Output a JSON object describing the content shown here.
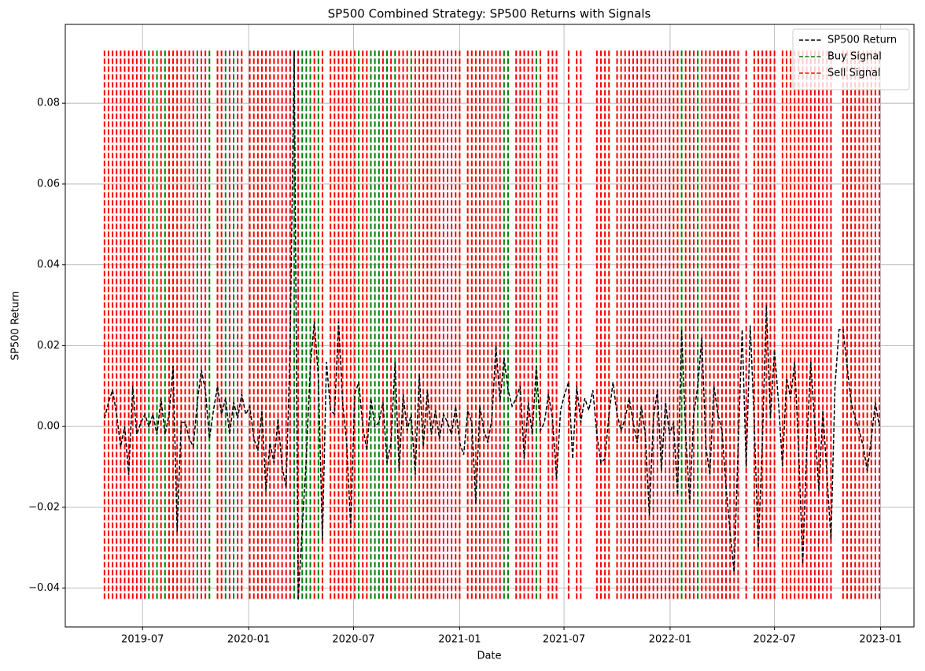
{
  "chart_data": {
    "type": "line",
    "title": "SP500 Combined Strategy: SP500 Returns with Signals",
    "x_label": "Date",
    "y_label": "SP500 Return",
    "x": [
      "2019-04-26",
      "2019-05-03",
      "2019-05-10",
      "2019-05-17",
      "2019-05-24",
      "2019-05-31",
      "2019-06-07",
      "2019-06-14",
      "2019-06-21",
      "2019-06-28",
      "2019-07-05",
      "2019-07-12",
      "2019-07-19",
      "2019-07-26",
      "2019-08-02",
      "2019-08-09",
      "2019-08-16",
      "2019-08-23",
      "2019-08-30",
      "2019-09-06",
      "2019-09-13",
      "2019-09-20",
      "2019-09-27",
      "2019-10-04",
      "2019-10-11",
      "2019-10-18",
      "2019-10-25",
      "2019-11-01",
      "2019-11-08",
      "2019-11-15",
      "2019-11-22",
      "2019-11-29",
      "2019-12-06",
      "2019-12-13",
      "2019-12-20",
      "2019-12-27",
      "2020-01-03",
      "2020-01-10",
      "2020-01-17",
      "2020-01-24",
      "2020-01-31",
      "2020-02-07",
      "2020-02-14",
      "2020-02-21",
      "2020-02-28",
      "2020-03-06",
      "2020-03-13",
      "2020-03-20",
      "2020-03-27",
      "2020-04-03",
      "2020-04-10",
      "2020-04-17",
      "2020-04-24",
      "2020-05-01",
      "2020-05-08",
      "2020-05-15",
      "2020-05-22",
      "2020-05-29",
      "2020-06-05",
      "2020-06-12",
      "2020-06-19",
      "2020-06-26",
      "2020-07-03",
      "2020-07-10",
      "2020-07-17",
      "2020-07-24",
      "2020-07-31",
      "2020-08-07",
      "2020-08-14",
      "2020-08-21",
      "2020-08-28",
      "2020-09-04",
      "2020-09-11",
      "2020-09-18",
      "2020-09-25",
      "2020-10-02",
      "2020-10-09",
      "2020-10-16",
      "2020-10-23",
      "2020-10-30",
      "2020-11-06",
      "2020-11-13",
      "2020-11-20",
      "2020-11-27",
      "2020-12-04",
      "2020-12-11",
      "2020-12-18",
      "2020-12-25",
      "2021-01-01",
      "2021-01-08",
      "2021-01-15",
      "2021-01-22",
      "2021-01-29",
      "2021-02-05",
      "2021-02-12",
      "2021-02-19",
      "2021-02-26",
      "2021-03-05",
      "2021-03-12",
      "2021-03-19",
      "2021-03-26",
      "2021-04-02",
      "2021-04-09",
      "2021-04-16",
      "2021-04-23",
      "2021-04-30",
      "2021-05-07",
      "2021-05-14",
      "2021-05-21",
      "2021-05-28",
      "2021-06-04",
      "2021-06-11",
      "2021-06-18",
      "2021-06-25",
      "2021-07-02",
      "2021-07-09",
      "2021-07-16",
      "2021-07-23",
      "2021-07-30",
      "2021-08-06",
      "2021-08-13",
      "2021-08-20",
      "2021-08-27",
      "2021-09-03",
      "2021-09-10",
      "2021-09-17",
      "2021-09-24",
      "2021-10-01",
      "2021-10-08",
      "2021-10-15",
      "2021-10-22",
      "2021-10-29",
      "2021-11-05",
      "2021-11-12",
      "2021-11-19",
      "2021-11-26",
      "2021-12-03",
      "2021-12-10",
      "2021-12-17",
      "2021-12-24",
      "2021-12-31",
      "2022-01-07",
      "2022-01-14",
      "2022-01-21",
      "2022-01-28",
      "2022-02-04",
      "2022-02-11",
      "2022-02-18",
      "2022-02-25",
      "2022-03-04",
      "2022-03-11",
      "2022-03-18",
      "2022-03-25",
      "2022-04-01",
      "2022-04-08",
      "2022-04-15",
      "2022-04-22",
      "2022-04-29",
      "2022-05-06",
      "2022-05-13",
      "2022-05-20",
      "2022-05-27",
      "2022-06-03",
      "2022-06-10",
      "2022-06-17",
      "2022-06-24",
      "2022-07-01",
      "2022-07-08",
      "2022-07-15",
      "2022-07-22",
      "2022-07-29",
      "2022-08-05",
      "2022-08-12",
      "2022-08-19",
      "2022-08-26",
      "2022-09-02",
      "2022-09-09",
      "2022-09-16",
      "2022-09-23",
      "2022-09-30",
      "2022-10-07",
      "2022-10-14",
      "2022-10-21",
      "2022-10-28",
      "2022-11-04",
      "2022-11-11",
      "2022-11-18",
      "2022-11-25",
      "2022-12-02",
      "2022-12-09",
      "2022-12-16",
      "2022-12-23",
      "2022-12-30"
    ],
    "series": [
      {
        "name": "SP500 Return",
        "color": "#000000",
        "values": [
          0.002,
          0.006,
          0.009,
          0.003,
          -0.005,
          0.0,
          -0.012,
          0.01,
          -0.002,
          0.001,
          0.003,
          0.0,
          0.003,
          -0.002,
          0.007,
          -0.002,
          0.003,
          0.015,
          -0.026,
          0.001,
          0.001,
          -0.003,
          -0.005,
          0.006,
          0.014,
          0.009,
          -0.003,
          0.004,
          0.01,
          0.003,
          0.007,
          -0.002,
          0.006,
          0.002,
          0.008,
          0.003,
          0.005,
          -0.003,
          -0.006,
          0.004,
          -0.016,
          -0.004,
          -0.009,
          0.002,
          -0.01,
          -0.015,
          0.02,
          0.093,
          -0.043,
          -0.025,
          -0.008,
          0.015,
          0.026,
          0.012,
          -0.028,
          0.016,
          0.004,
          0.003,
          0.026,
          0.006,
          -0.004,
          -0.025,
          0.008,
          0.011,
          0.0,
          -0.006,
          0.007,
          0.0,
          0.001,
          0.006,
          -0.009,
          -0.004,
          0.016,
          -0.011,
          0.008,
          -0.001,
          0.003,
          -0.012,
          0.013,
          -0.005,
          0.009,
          -0.002,
          0.004,
          -0.003,
          0.003,
          0.001,
          -0.002,
          0.005,
          -0.004,
          -0.007,
          0.004,
          0.001,
          -0.019,
          0.005,
          -0.001,
          -0.004,
          0.002,
          0.02,
          0.006,
          0.017,
          0.009,
          0.005,
          0.007,
          0.01,
          -0.008,
          0.006,
          -0.002,
          0.015,
          -0.001,
          0.001,
          0.008,
          0.002,
          -0.013,
          0.004,
          0.008,
          0.011,
          -0.008,
          0.01,
          0.001,
          0.007,
          0.004,
          0.009,
          -0.002,
          -0.009,
          -0.008,
          0.003,
          0.011,
          0.003,
          -0.001,
          0.002,
          0.007,
          0.001,
          -0.004,
          0.005,
          -0.002,
          -0.022,
          0.002,
          0.009,
          -0.011,
          0.006,
          -0.002,
          0.001,
          -0.017,
          0.024,
          -0.002,
          -0.019,
          0.003,
          0.01,
          0.022,
          -0.005,
          -0.012,
          0.01,
          0.003,
          -0.001,
          -0.015,
          -0.026,
          -0.036,
          -0.005,
          0.024,
          -0.01,
          0.025,
          0.001,
          -0.03,
          -0.004,
          0.03,
          0.002,
          0.019,
          0.006,
          -0.01,
          0.012,
          0.007,
          0.016,
          -0.006,
          -0.034,
          -0.005,
          0.016,
          0.0,
          -0.016,
          0.004,
          -0.012,
          -0.028,
          0.01,
          0.024,
          0.024,
          0.015,
          0.006,
          0.002,
          -0.001,
          -0.005,
          -0.011,
          -0.003,
          0.006,
          0.0
        ]
      }
    ],
    "signals": [
      {
        "name": "Buy Signal",
        "color": "#008000",
        "x": [
          "2019-07-12",
          "2019-07-26",
          "2019-08-09",
          "2019-10-04",
          "2019-10-25",
          "2019-11-22",
          "2019-12-06",
          "2020-03-20",
          "2020-04-03",
          "2020-04-10",
          "2020-04-17",
          "2020-05-01",
          "2020-07-10",
          "2020-07-31",
          "2020-08-07",
          "2020-08-14",
          "2020-08-28",
          "2020-09-11",
          "2020-10-09",
          "2021-03-19",
          "2021-03-26",
          "2021-05-14",
          "2022-01-21",
          "2022-02-18"
        ]
      },
      {
        "name": "Sell Signal",
        "color": "#ff0000",
        "x": [
          "2019-04-26",
          "2019-05-03",
          "2019-05-10",
          "2019-05-17",
          "2019-05-24",
          "2019-05-31",
          "2019-06-07",
          "2019-06-14",
          "2019-06-21",
          "2019-06-28",
          "2019-07-05",
          "2019-07-19",
          "2019-08-02",
          "2019-08-16",
          "2019-08-23",
          "2019-08-30",
          "2019-09-06",
          "2019-09-13",
          "2019-09-20",
          "2019-09-27",
          "2019-10-11",
          "2019-10-18",
          "2019-11-08",
          "2019-11-15",
          "2019-11-29",
          "2019-12-13",
          "2019-12-20",
          "2020-01-03",
          "2020-01-10",
          "2020-01-17",
          "2020-01-24",
          "2020-01-31",
          "2020-02-07",
          "2020-02-14",
          "2020-02-21",
          "2020-02-28",
          "2020-03-06",
          "2020-03-13",
          "2020-03-27",
          "2020-04-24",
          "2020-05-08",
          "2020-05-22",
          "2020-05-29",
          "2020-06-05",
          "2020-06-12",
          "2020-06-19",
          "2020-06-26",
          "2020-07-03",
          "2020-07-17",
          "2020-07-24",
          "2020-08-21",
          "2020-09-04",
          "2020-09-18",
          "2020-09-25",
          "2020-10-02",
          "2020-10-16",
          "2020-10-23",
          "2020-10-30",
          "2020-11-06",
          "2020-11-13",
          "2020-11-20",
          "2020-11-27",
          "2020-12-04",
          "2020-12-11",
          "2020-12-18",
          "2020-12-25",
          "2021-01-01",
          "2021-01-15",
          "2021-01-22",
          "2021-01-29",
          "2021-02-05",
          "2021-02-12",
          "2021-02-19",
          "2021-02-26",
          "2021-03-05",
          "2021-03-12",
          "2021-04-09",
          "2021-04-16",
          "2021-04-23",
          "2021-04-30",
          "2021-05-07",
          "2021-05-21",
          "2021-06-04",
          "2021-06-11",
          "2021-06-18",
          "2021-07-09",
          "2021-07-23",
          "2021-07-30",
          "2021-08-27",
          "2021-09-03",
          "2021-09-10",
          "2021-09-17",
          "2021-10-01",
          "2021-10-08",
          "2021-10-15",
          "2021-10-22",
          "2021-10-29",
          "2021-11-05",
          "2021-11-12",
          "2021-11-19",
          "2021-11-26",
          "2021-12-03",
          "2021-12-10",
          "2021-12-17",
          "2021-12-24",
          "2021-12-31",
          "2022-01-07",
          "2022-01-14",
          "2022-01-28",
          "2022-02-04",
          "2022-02-11",
          "2022-02-25",
          "2022-03-04",
          "2022-03-11",
          "2022-03-18",
          "2022-03-25",
          "2022-04-01",
          "2022-04-08",
          "2022-04-15",
          "2022-04-22",
          "2022-04-29",
          "2022-05-13",
          "2022-05-27",
          "2022-06-03",
          "2022-06-10",
          "2022-06-17",
          "2022-06-24",
          "2022-07-01",
          "2022-07-15",
          "2022-07-22",
          "2022-07-29",
          "2022-08-05",
          "2022-08-12",
          "2022-08-19",
          "2022-08-26",
          "2022-09-02",
          "2022-09-09",
          "2022-09-16",
          "2022-09-23",
          "2022-09-30",
          "2022-10-07",
          "2022-10-28",
          "2022-11-04",
          "2022-11-11",
          "2022-11-18",
          "2022-11-25",
          "2022-12-02",
          "2022-12-09",
          "2022-12-16",
          "2022-12-23",
          "2022-12-30"
        ]
      }
    ],
    "xlim": [
      "2019-02-17",
      "2023-02-28"
    ],
    "xticks": [
      {
        "value": "2019-07-01",
        "label": "2019-07"
      },
      {
        "value": "2020-01-01",
        "label": "2020-01"
      },
      {
        "value": "2020-07-01",
        "label": "2020-07"
      },
      {
        "value": "2021-01-01",
        "label": "2021-01"
      },
      {
        "value": "2021-07-01",
        "label": "2021-07"
      },
      {
        "value": "2022-01-01",
        "label": "2022-01"
      },
      {
        "value": "2022-07-01",
        "label": "2022-07"
      },
      {
        "value": "2023-01-01",
        "label": "2023-01"
      }
    ],
    "ylim": [
      -0.0496,
      0.0995
    ],
    "yticks": [
      {
        "value": -0.04,
        "label": "−0.04"
      },
      {
        "value": -0.02,
        "label": "−0.02"
      },
      {
        "value": 0,
        "label": "0.00"
      },
      0.02,
      0.04,
      0.06,
      0.08
    ],
    "grid": true,
    "legend": "upper right"
  }
}
